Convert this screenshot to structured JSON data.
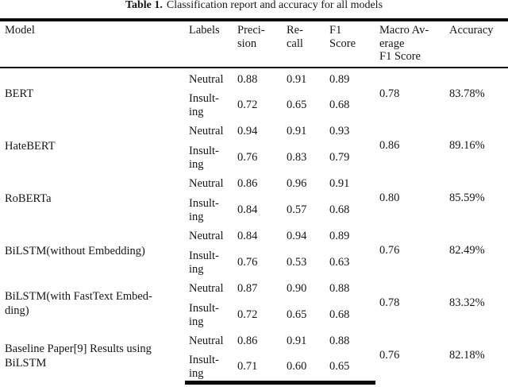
{
  "caption": {
    "label": "Table 1.",
    "text": "Classification report and accuracy for all models"
  },
  "table": {
    "headers": {
      "model": "Model",
      "labels": "Labels",
      "precision": "Preci-\nsion",
      "recall": "Re-\ncall",
      "f1": "F1\nScore",
      "macro": "Macro Av-\nerage\nF1 Score",
      "accuracy": "Accuracy"
    },
    "rows": [
      {
        "model": "BERT",
        "neutral": {
          "label": "Neutral",
          "precision": "0.88",
          "recall": "0.91",
          "f1": "0.89"
        },
        "insulting": {
          "label": "Insult-\ning",
          "precision": "0.72",
          "recall": "0.65",
          "f1": "0.68"
        },
        "macro_f1": "0.78",
        "accuracy": "83.78%"
      },
      {
        "model": "HateBERT",
        "neutral": {
          "label": "Neutral",
          "precision": "0.94",
          "recall": "0.91",
          "f1": "0.93"
        },
        "insulting": {
          "label": "Insult-\ning",
          "precision": "0.76",
          "recall": "0.83",
          "f1": "0.79"
        },
        "macro_f1": "0.86",
        "accuracy": "89.16%"
      },
      {
        "model": "RoBERTa",
        "neutral": {
          "label": "Neutral",
          "precision": "0.86",
          "recall": "0.96",
          "f1": "0.91"
        },
        "insulting": {
          "label": "Insult-\ning",
          "precision": "0.84",
          "recall": "0.57",
          "f1": "0.68"
        },
        "macro_f1": "0.80",
        "accuracy": "85.59%"
      },
      {
        "model": "BiLSTM(without Embedding)",
        "neutral": {
          "label": "Neutral",
          "precision": "0.84",
          "recall": "0.94",
          "f1": "0.89"
        },
        "insulting": {
          "label": "Insult-\ning",
          "precision": "0.76",
          "recall": "0.53",
          "f1": "0.63"
        },
        "macro_f1": "0.76",
        "accuracy": "82.49%"
      },
      {
        "model": "BiLSTM(with FastText Embed-\nding)",
        "neutral": {
          "label": "Neutral",
          "precision": "0.87",
          "recall": "0.90",
          "f1": "0.88"
        },
        "insulting": {
          "label": "Insult-\ning",
          "precision": "0.72",
          "recall": "0.65",
          "f1": "0.68"
        },
        "macro_f1": "0.78",
        "accuracy": "83.32%"
      },
      {
        "model": "Baseline Paper[9] Results using\nBiLSTM",
        "neutral": {
          "label": "Neutral",
          "precision": "0.86",
          "recall": "0.91",
          "f1": "0.88"
        },
        "insulting": {
          "label": "Insult-\ning",
          "precision": "0.71",
          "recall": "0.60",
          "f1": "0.65"
        },
        "macro_f1": "0.76",
        "accuracy": "82.18%"
      }
    ]
  },
  "colors": {
    "background": "#ffffff",
    "text": "#161616",
    "rule": "#0a0a0a"
  }
}
